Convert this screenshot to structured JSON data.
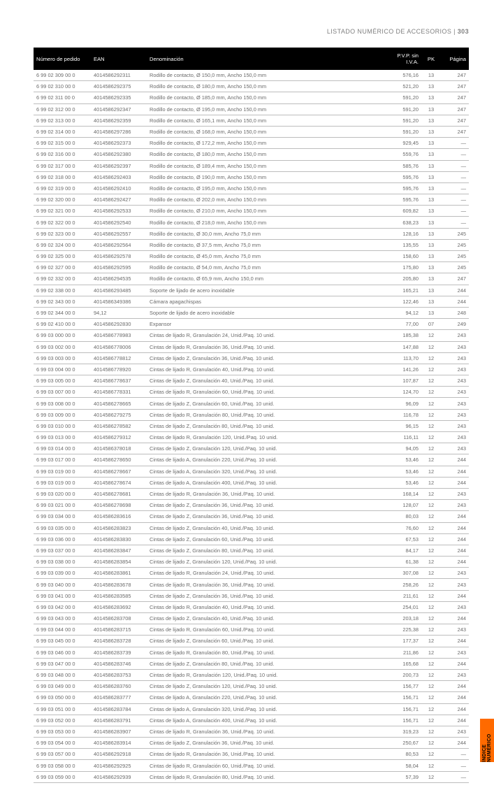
{
  "header": {
    "section": "LISTADO NUMÉRICO DE ACCESORIOS",
    "pageNo": "303"
  },
  "sideTab": "ÍNDICE NUMÉRICO",
  "columns": {
    "order": "Número de pedido",
    "ean": "EAN",
    "desc": "Denominación",
    "pvp": "P.V.P. sin I.V.A.",
    "pk": "PK",
    "pg": "Página"
  },
  "rows": [
    {
      "o": "6 99 02 309 00 0",
      "e": "4014586292311",
      "d": "Rodillo de contacto, Ø 150,0 mm, Ancho 150,0 mm",
      "p": "576,16",
      "k": "13",
      "g": "247"
    },
    {
      "o": "6 99 02 310 00 0",
      "e": "4014586292375",
      "d": "Rodillo de contacto, Ø 180,0 mm, Ancho 150,0 mm",
      "p": "521,20",
      "k": "13",
      "g": "247"
    },
    {
      "o": "6 99 02 311 00 0",
      "e": "4014586292335",
      "d": "Rodillo de contacto, Ø 185,0 mm, Ancho 150,0 mm",
      "p": "591,20",
      "k": "13",
      "g": "247"
    },
    {
      "o": "6 99 02 312 00 0",
      "e": "4014586292347",
      "d": "Rodillo de contacto, Ø 195,0 mm, Ancho 150,0 mm",
      "p": "591,20",
      "k": "13",
      "g": "247"
    },
    {
      "o": "6 99 02 313 00 0",
      "e": "4014586292359",
      "d": "Rodillo de contacto, Ø 165,1 mm, Ancho 150,0 mm",
      "p": "591,20",
      "k": "13",
      "g": "247"
    },
    {
      "o": "6 99 02 314 00 0",
      "e": "4014586297286",
      "d": "Rodillo de contacto, Ø 168,0 mm, Ancho 150,0 mm",
      "p": "591,20",
      "k": "13",
      "g": "247"
    },
    {
      "o": "6 99 02 315 00 0",
      "e": "4014586292373",
      "d": "Rodillo de contacto, Ø 172,2 mm, Ancho 150,0 mm",
      "p": "929,45",
      "k": "13",
      "g": "—"
    },
    {
      "o": "6 99 02 316 00 0",
      "e": "4014586292380",
      "d": "Rodillo de contacto, Ø 180,0 mm, Ancho 150,0 mm",
      "p": "559,76",
      "k": "13",
      "g": "—"
    },
    {
      "o": "6 99 02 317 00 0",
      "e": "4014586292397",
      "d": "Rodillo de contacto, Ø 189,4 mm, Ancho 150,0 mm",
      "p": "585,76",
      "k": "13",
      "g": "—"
    },
    {
      "o": "6 99 02 318 00 0",
      "e": "4014586292403",
      "d": "Rodillo de contacto, Ø 190,0 mm, Ancho 150,0 mm",
      "p": "595,76",
      "k": "13",
      "g": "—"
    },
    {
      "o": "6 99 02 319 00 0",
      "e": "4014586292410",
      "d": "Rodillo de contacto, Ø 195,0 mm, Ancho 150,0 mm",
      "p": "595,76",
      "k": "13",
      "g": "—"
    },
    {
      "o": "6 99 02 320 00 0",
      "e": "4014586292427",
      "d": "Rodillo de contacto, Ø 202,0 mm, Ancho 150,0 mm",
      "p": "595,76",
      "k": "13",
      "g": "—"
    },
    {
      "o": "6 99 02 321 00 0",
      "e": "4014586292533",
      "d": "Rodillo de contacto, Ø 210,0 mm, Ancho 150,0 mm",
      "p": "609,82",
      "k": "13",
      "g": "—"
    },
    {
      "o": "6 99 02 322 00 0",
      "e": "4014586292540",
      "d": "Rodillo de contacto, Ø 218,0 mm, Ancho 150,0 mm",
      "p": "638,23",
      "k": "13",
      "g": "—"
    },
    {
      "o": "6 99 02 323 00 0",
      "e": "4014586292557",
      "d": "Rodillo de contacto, Ø 30,0 mm, Ancho 75,0 mm",
      "p": "128,16",
      "k": "13",
      "g": "245"
    },
    {
      "o": "6 99 02 324 00 0",
      "e": "4014586292564",
      "d": "Rodillo de contacto, Ø 37,5 mm, Ancho 75,0 mm",
      "p": "135,55",
      "k": "13",
      "g": "245"
    },
    {
      "o": "6 99 02 325 00 0",
      "e": "4014586292578",
      "d": "Rodillo de contacto, Ø 45,0 mm, Ancho 75,0 mm",
      "p": "158,60",
      "k": "13",
      "g": "245"
    },
    {
      "o": "6 99 02 327 00 0",
      "e": "4014586292595",
      "d": "Rodillo de contacto, Ø 54,0 mm, Ancho 75,0 mm",
      "p": "175,80",
      "k": "13",
      "g": "245"
    },
    {
      "o": "6 99 02 332 00 0",
      "e": "4014586294535",
      "d": "Rodillo de contacto, Ø 65,9 mm, Ancho 150,0 mm",
      "p": "205,80",
      "k": "13",
      "g": "247"
    },
    {
      "o": "6 99 02 338 00 0",
      "e": "4014586293485",
      "d": "Soporte de lijado de acero inoxidable",
      "p": "165,21",
      "k": "13",
      "g": "244"
    },
    {
      "o": "6 99 02 343 00 0",
      "e": "4014586349386",
      "d": "Cámara apagachispas",
      "p": "122,46",
      "k": "13",
      "g": "244"
    },
    {
      "o": "6 99 02 344 00 0",
      "e": " 94,12",
      "d": "Soporte de lijado de acero inoxidable",
      "p": "94,12",
      "k": "13",
      "g": "248"
    },
    {
      "o": "6 99 02 410 00 0",
      "e": "4014586292830",
      "d": "Expansor",
      "p": "77,00",
      "k": "07",
      "g": "249"
    },
    {
      "o": "6 99 03 000 00 0",
      "e": "4014586778983",
      "d": "Cintas de lijado R, Granulación 24, Unid./Paq. 10 unid.",
      "p": "185,38",
      "k": "12",
      "g": "243"
    },
    {
      "o": "6 99 03 002 00 0",
      "e": "4014586778006",
      "d": "Cintas de lijado R, Granulación 36, Unid./Paq. 10 unid.",
      "p": "147,88",
      "k": "12",
      "g": "243"
    },
    {
      "o": "6 99 03 003 00 0",
      "e": "4014586778812",
      "d": "Cintas de lijado Z, Granulación 36, Unid./Paq. 10 unid.",
      "p": "113,70",
      "k": "12",
      "g": "243"
    },
    {
      "o": "6 99 03 004 00 0",
      "e": "4014586778920",
      "d": "Cintas de lijado R, Granulación 40, Unid./Paq. 10 unid.",
      "p": "141,26",
      "k": "12",
      "g": "243"
    },
    {
      "o": "6 99 03 005 00 0",
      "e": "4014586778637",
      "d": "Cintas de lijado Z, Granulación 40, Unid./Paq. 10 unid.",
      "p": "107,87",
      "k": "12",
      "g": "243"
    },
    {
      "o": "6 99 03 007 00 0",
      "e": "4014586778331",
      "d": "Cintas de lijado R, Granulación 60, Unid./Paq. 10 unid.",
      "p": "124,70",
      "k": "12",
      "g": "243"
    },
    {
      "o": "6 99 03 008 00 0",
      "e": "4014586278665",
      "d": "Cintas de lijado Z, Granulación 60, Unid./Paq. 10 unid.",
      "p": "96,09",
      "k": "12",
      "g": "243"
    },
    {
      "o": "6 99 03 009 00 0",
      "e": "4014586279275",
      "d": "Cintas de lijado R, Granulación 80, Unid./Paq. 10 unid.",
      "p": "116,78",
      "k": "12",
      "g": "243"
    },
    {
      "o": "6 99 03 010 00 0",
      "e": "4014586278582",
      "d": "Cintas de lijado Z, Granulación 80, Unid./Paq. 10 unid.",
      "p": "96,15",
      "k": "12",
      "g": "243"
    },
    {
      "o": "6 99 03 013 00 0",
      "e": "4014586279312",
      "d": "Cintas de lijado R, Granulación 120, Unid./Paq. 10 unid.",
      "p": "116,11",
      "k": "12",
      "g": "243"
    },
    {
      "o": "6 99 03 014 00 0",
      "e": "4014586378018",
      "d": "Cintas de lijado Z, Granulación 120, Unid./Paq. 10 unid.",
      "p": "94,05",
      "k": "12",
      "g": "243"
    },
    {
      "o": "6 99 03 017 00 0",
      "e": "4014586278650",
      "d": "Cintas de lijado A, Granulación 220, Unid./Paq. 10 unid.",
      "p": "53,46",
      "k": "12",
      "g": "244"
    },
    {
      "o": "6 99 03 019 00 0",
      "e": "4014586278667",
      "d": "Cintas de lijado A, Granulación 320, Unid./Paq. 10 unid.",
      "p": "53,46",
      "k": "12",
      "g": "244"
    },
    {
      "o": "6 99 03 019 00 0",
      "e": "4014586278674",
      "d": "Cintas de lijado A, Granulación 400, Unid./Paq. 10 unid.",
      "p": "53,46",
      "k": "12",
      "g": "244"
    },
    {
      "o": "6 99 03 020 00 0",
      "e": "4014586278681",
      "d": "Cintas de lijado R, Granulación 36, Unid./Paq. 10 unid.",
      "p": "168,14",
      "k": "12",
      "g": "243"
    },
    {
      "o": "6 99 03 021 00 0",
      "e": "4014586278698",
      "d": "Cintas de lijado Z, Granulación 36, Unid./Paq. 10 unid.",
      "p": "128,07",
      "k": "12",
      "g": "243"
    },
    {
      "o": "6 99 03 034 00 0",
      "e": "4014586283616",
      "d": "Cintas de lijado Z, Granulación 36, Unid./Paq. 10 unid.",
      "p": "80,03",
      "k": "12",
      "g": "244"
    },
    {
      "o": "6 99 03 035 00 0",
      "e": "4014586283823",
      "d": "Cintas de lijado Z, Granulación 40, Unid./Paq. 10 unid.",
      "p": "76,60",
      "k": "12",
      "g": "244"
    },
    {
      "o": "6 99 03 036 00 0",
      "e": "4014586283830",
      "d": "Cintas de lijado Z, Granulación 60, Unid./Paq. 10 unid.",
      "p": "67,53",
      "k": "12",
      "g": "244"
    },
    {
      "o": "6 99 03 037 00 0",
      "e": "4014586283847",
      "d": "Cintas de lijado Z, Granulación 80, Unid./Paq. 10 unid.",
      "p": "84,17",
      "k": "12",
      "g": "244"
    },
    {
      "o": "6 99 03 038 00 0",
      "e": "4014586283854",
      "d": "Cintas de lijado Z, Granulación 120, Unid./Paq. 10 unid.",
      "p": "61,38",
      "k": "12",
      "g": "244"
    },
    {
      "o": "6 99 03 039 00 0",
      "e": "4014586283861",
      "d": "Cintas de lijado R, Granulación 24, Unid./Paq. 10 unid.",
      "p": "307,08",
      "k": "12",
      "g": "243"
    },
    {
      "o": "6 99 03 040 00 0",
      "e": "4014586283678",
      "d": "Cintas de lijado R, Granulación 36, Unid./Paq. 10 unid.",
      "p": "258,26",
      "k": "12",
      "g": "243"
    },
    {
      "o": "6 99 03 041 00 0",
      "e": "4014586283585",
      "d": "Cintas de lijado Z, Granulación 36, Unid./Paq. 10 unid.",
      "p": "211,61",
      "k": "12",
      "g": "244"
    },
    {
      "o": "6 99 03 042 00 0",
      "e": "4014586283692",
      "d": "Cintas de lijado R, Granulación 40, Unid./Paq. 10 unid.",
      "p": "254,01",
      "k": "12",
      "g": "243"
    },
    {
      "o": "6 99 03 043 00 0",
      "e": "4014586283708",
      "d": "Cintas de lijado Z, Granulación 40, Unid./Paq. 10 unid.",
      "p": "203,18",
      "k": "12",
      "g": "244"
    },
    {
      "o": "6 99 03 044 00 0",
      "e": "4014586283715",
      "d": "Cintas de lijado R, Granulación 60, Unid./Paq. 10 unid.",
      "p": "225,38",
      "k": "12",
      "g": "243"
    },
    {
      "o": "6 99 03 045 00 0",
      "e": "4014586283728",
      "d": "Cintas de lijado Z, Granulación 60, Unid./Paq. 10 unid.",
      "p": "177,37",
      "k": "12",
      "g": "244"
    },
    {
      "o": "6 99 03 046 00 0",
      "e": "4014586283739",
      "d": "Cintas de lijado R, Granulación 80, Unid./Paq. 10 unid.",
      "p": "211,86",
      "k": "12",
      "g": "243"
    },
    {
      "o": "6 99 03 047 00 0",
      "e": "4014586283746",
      "d": "Cintas de lijado Z, Granulación 80, Unid./Paq. 10 unid.",
      "p": "165,68",
      "k": "12",
      "g": "244"
    },
    {
      "o": "6 99 03 048 00 0",
      "e": "4014586283753",
      "d": "Cintas de lijado R, Granulación 120, Unid./Paq. 10 unid.",
      "p": "200,73",
      "k": "12",
      "g": "243"
    },
    {
      "o": "6 99 03 049 00 0",
      "e": "4014586283760",
      "d": "Cintas de lijado Z, Granulación 120, Unid./Paq. 10 unid.",
      "p": "156,77",
      "k": "12",
      "g": "244"
    },
    {
      "o": "6 99 03 050 00 0",
      "e": "4014586283777",
      "d": "Cintas de lijado A, Granulación 220, Unid./Paq. 10 unid.",
      "p": "156,71",
      "k": "12",
      "g": "244"
    },
    {
      "o": "6 99 03 051 00 0",
      "e": "4014586283784",
      "d": "Cintas de lijado A, Granulación 320, Unid./Paq. 10 unid.",
      "p": "156,71",
      "k": "12",
      "g": "244"
    },
    {
      "o": "6 99 03 052 00 0",
      "e": "4014586283791",
      "d": "Cintas de lijado A, Granulación 400, Unid./Paq. 10 unid.",
      "p": "156,71",
      "k": "12",
      "g": "244"
    },
    {
      "o": "6 99 03 053 00 0",
      "e": "4014586283907",
      "d": "Cintas de lijado R, Granulación 36, Unid./Paq. 10 unid.",
      "p": "319,23",
      "k": "12",
      "g": "243"
    },
    {
      "o": "6 99 03 054 00 0",
      "e": "4014586283914",
      "d": "Cintas de lijado Z, Granulación 36, Unid./Paq. 10 unid.",
      "p": "250,67",
      "k": "12",
      "g": "244"
    },
    {
      "o": "6 99 03 057 00 0",
      "e": "4014586292918",
      "d": "Cintas de lijado R, Granulación 36, Unid./Paq. 10 unid.",
      "p": "80,53",
      "k": "12",
      "g": "—"
    },
    {
      "o": "6 99 03 058 00 0",
      "e": "4014586292925",
      "d": "Cintas de lijado R, Granulación 60, Unid./Paq. 10 unid.",
      "p": "58,04",
      "k": "12",
      "g": "—"
    },
    {
      "o": "6 99 03 059 00 0",
      "e": "4014586292939",
      "d": "Cintas de lijado R, Granulación 80, Unid./Paq. 10 unid.",
      "p": "57,39",
      "k": "12",
      "g": "—"
    }
  ]
}
